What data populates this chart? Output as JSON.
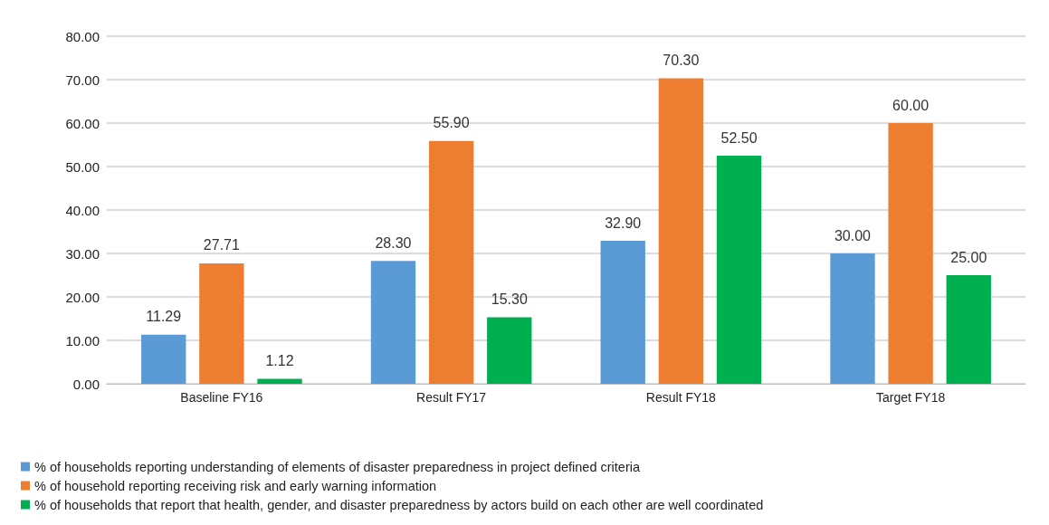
{
  "chart_data": {
    "type": "bar",
    "categories": [
      "Baseline FY16",
      "Result FY17",
      "Result FY18",
      "Target FY18"
    ],
    "series": [
      {
        "name": "% of households reporting understanding of elements of disaster preparedness in project defined criteria",
        "color": "#5b9bd5",
        "values": [
          11.29,
          28.3,
          32.9,
          30.0
        ],
        "value_labels": [
          "11.29",
          "28.30",
          "32.90",
          "30.00"
        ]
      },
      {
        "name": "% of household reporting receiving risk and early warning information",
        "color": "#ed7d31",
        "values": [
          27.71,
          55.9,
          70.3,
          60.0
        ],
        "value_labels": [
          "27.71",
          "55.90",
          "70.30",
          "60.00"
        ]
      },
      {
        "name": "% of households that report that health, gender, and disaster preparedness by actors build on each other are well coordinated",
        "color": "#00b050",
        "values": [
          1.12,
          15.3,
          52.5,
          25.0
        ],
        "value_labels": [
          "1.12",
          "15.30",
          "52.50",
          "25.00"
        ]
      }
    ],
    "ylim": [
      0,
      80
    ],
    "yticks": [
      {
        "value": 0,
        "label": "0.00"
      },
      {
        "value": 10,
        "label": "10.00"
      },
      {
        "value": 20,
        "label": "20.00"
      },
      {
        "value": 30,
        "label": "30.00"
      },
      {
        "value": 40,
        "label": "40.00"
      },
      {
        "value": 50,
        "label": "50.00"
      },
      {
        "value": 60,
        "label": "60.00"
      },
      {
        "value": 70,
        "label": "70.00"
      },
      {
        "value": 80,
        "label": "80.00"
      }
    ],
    "grid": "y",
    "legend": "bottom left"
  }
}
